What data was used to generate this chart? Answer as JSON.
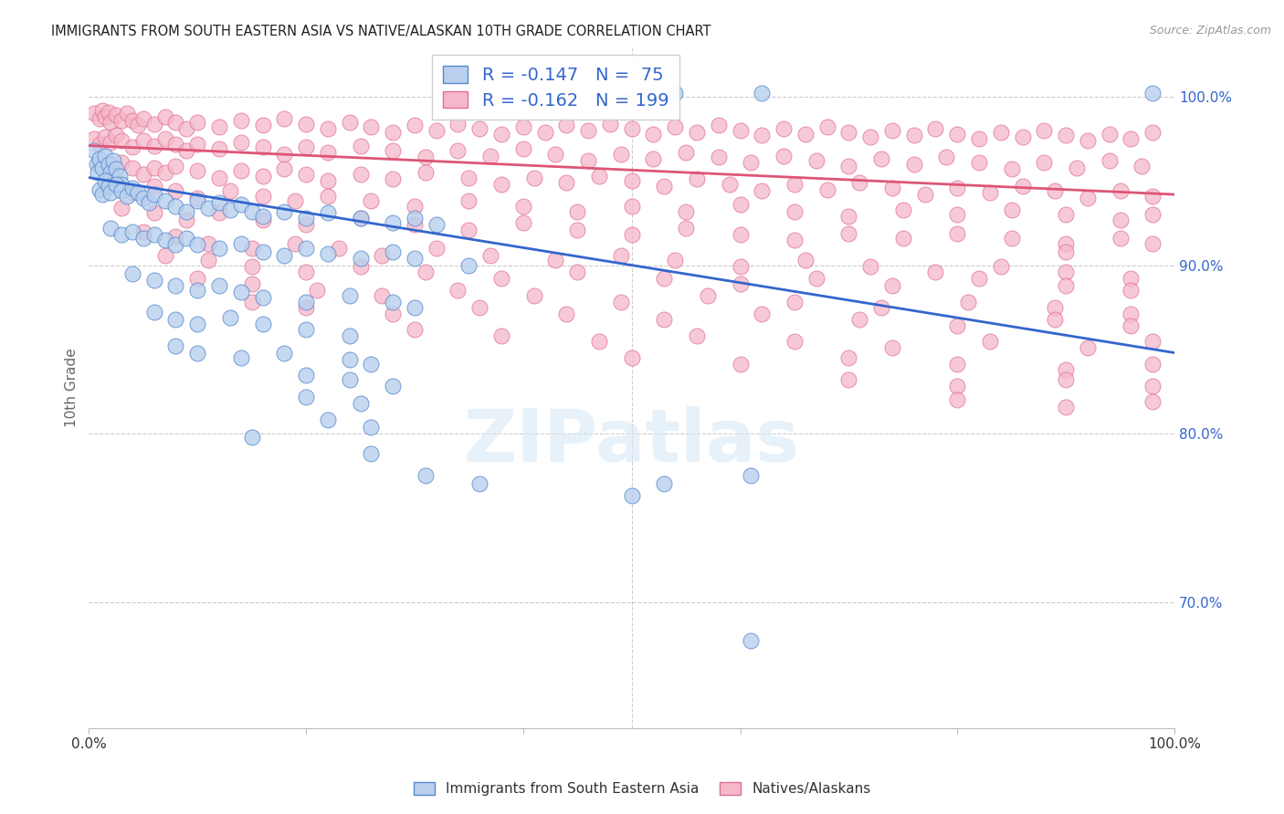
{
  "title": "IMMIGRANTS FROM SOUTH EASTERN ASIA VS NATIVE/ALASKAN 10TH GRADE CORRELATION CHART",
  "source": "Source: ZipAtlas.com",
  "ylabel": "10th Grade",
  "y_tick_labels": [
    "70.0%",
    "80.0%",
    "90.0%",
    "100.0%"
  ],
  "y_tick_values": [
    0.7,
    0.8,
    0.9,
    1.0
  ],
  "x_range": [
    0.0,
    1.0
  ],
  "y_range": [
    0.625,
    1.03
  ],
  "legend_blue_r": "-0.147",
  "legend_blue_n": "75",
  "legend_pink_r": "-0.162",
  "legend_pink_n": "199",
  "blue_color": "#b8d0ee",
  "pink_color": "#f5b8ca",
  "blue_edge_color": "#5588cc",
  "pink_edge_color": "#e07090",
  "blue_line_color": "#3366cc",
  "pink_line_color": "#dd5577",
  "blue_line": [
    [
      0.0,
      0.952
    ],
    [
      1.0,
      0.848
    ]
  ],
  "pink_line": [
    [
      0.0,
      0.971
    ],
    [
      1.0,
      0.942
    ]
  ],
  "blue_scatter": [
    [
      0.005,
      0.968
    ],
    [
      0.007,
      0.96
    ],
    [
      0.008,
      0.955
    ],
    [
      0.01,
      0.963
    ],
    [
      0.012,
      0.958
    ],
    [
      0.015,
      0.965
    ],
    [
      0.018,
      0.96
    ],
    [
      0.02,
      0.955
    ],
    [
      0.022,
      0.962
    ],
    [
      0.025,
      0.957
    ],
    [
      0.028,
      0.953
    ],
    [
      0.03,
      0.948
    ],
    [
      0.01,
      0.945
    ],
    [
      0.012,
      0.942
    ],
    [
      0.015,
      0.95
    ],
    [
      0.018,
      0.947
    ],
    [
      0.02,
      0.943
    ],
    [
      0.025,
      0.948
    ],
    [
      0.03,
      0.944
    ],
    [
      0.035,
      0.941
    ],
    [
      0.04,
      0.946
    ],
    [
      0.045,
      0.943
    ],
    [
      0.05,
      0.94
    ],
    [
      0.055,
      0.937
    ],
    [
      0.06,
      0.942
    ],
    [
      0.07,
      0.938
    ],
    [
      0.08,
      0.935
    ],
    [
      0.09,
      0.932
    ],
    [
      0.1,
      0.938
    ],
    [
      0.11,
      0.934
    ],
    [
      0.12,
      0.937
    ],
    [
      0.13,
      0.933
    ],
    [
      0.14,
      0.936
    ],
    [
      0.15,
      0.932
    ],
    [
      0.16,
      0.929
    ],
    [
      0.18,
      0.932
    ],
    [
      0.2,
      0.928
    ],
    [
      0.22,
      0.931
    ],
    [
      0.25,
      0.928
    ],
    [
      0.28,
      0.925
    ],
    [
      0.3,
      0.928
    ],
    [
      0.32,
      0.924
    ],
    [
      0.02,
      0.922
    ],
    [
      0.03,
      0.918
    ],
    [
      0.04,
      0.92
    ],
    [
      0.05,
      0.916
    ],
    [
      0.06,
      0.918
    ],
    [
      0.07,
      0.915
    ],
    [
      0.08,
      0.912
    ],
    [
      0.09,
      0.916
    ],
    [
      0.1,
      0.912
    ],
    [
      0.12,
      0.91
    ],
    [
      0.14,
      0.913
    ],
    [
      0.16,
      0.908
    ],
    [
      0.18,
      0.906
    ],
    [
      0.2,
      0.91
    ],
    [
      0.22,
      0.907
    ],
    [
      0.25,
      0.904
    ],
    [
      0.28,
      0.908
    ],
    [
      0.3,
      0.904
    ],
    [
      0.35,
      0.9
    ],
    [
      0.04,
      0.895
    ],
    [
      0.06,
      0.891
    ],
    [
      0.08,
      0.888
    ],
    [
      0.1,
      0.885
    ],
    [
      0.12,
      0.888
    ],
    [
      0.14,
      0.884
    ],
    [
      0.16,
      0.881
    ],
    [
      0.2,
      0.878
    ],
    [
      0.24,
      0.882
    ],
    [
      0.28,
      0.878
    ],
    [
      0.3,
      0.875
    ],
    [
      0.06,
      0.872
    ],
    [
      0.08,
      0.868
    ],
    [
      0.1,
      0.865
    ],
    [
      0.13,
      0.869
    ],
    [
      0.16,
      0.865
    ],
    [
      0.2,
      0.862
    ],
    [
      0.24,
      0.858
    ],
    [
      0.08,
      0.852
    ],
    [
      0.1,
      0.848
    ],
    [
      0.14,
      0.845
    ],
    [
      0.18,
      0.848
    ],
    [
      0.24,
      0.844
    ],
    [
      0.26,
      0.841
    ],
    [
      0.2,
      0.835
    ],
    [
      0.24,
      0.832
    ],
    [
      0.28,
      0.828
    ],
    [
      0.2,
      0.822
    ],
    [
      0.25,
      0.818
    ],
    [
      0.22,
      0.808
    ],
    [
      0.26,
      0.804
    ],
    [
      0.15,
      0.798
    ],
    [
      0.26,
      0.788
    ],
    [
      0.31,
      0.775
    ],
    [
      0.36,
      0.77
    ],
    [
      0.5,
      0.763
    ],
    [
      0.53,
      0.77
    ],
    [
      0.61,
      0.775
    ],
    [
      0.61,
      0.677
    ],
    [
      0.54,
      1.002
    ],
    [
      0.62,
      1.002
    ],
    [
      0.98,
      1.002
    ]
  ],
  "pink_scatter": [
    [
      0.005,
      0.99
    ],
    [
      0.01,
      0.987
    ],
    [
      0.012,
      0.992
    ],
    [
      0.015,
      0.988
    ],
    [
      0.018,
      0.991
    ],
    [
      0.02,
      0.985
    ],
    [
      0.025,
      0.989
    ],
    [
      0.03,
      0.986
    ],
    [
      0.035,
      0.99
    ],
    [
      0.04,
      0.986
    ],
    [
      0.045,
      0.983
    ],
    [
      0.05,
      0.987
    ],
    [
      0.06,
      0.984
    ],
    [
      0.07,
      0.988
    ],
    [
      0.08,
      0.985
    ],
    [
      0.09,
      0.981
    ],
    [
      0.1,
      0.985
    ],
    [
      0.12,
      0.982
    ],
    [
      0.14,
      0.986
    ],
    [
      0.16,
      0.983
    ],
    [
      0.18,
      0.987
    ],
    [
      0.2,
      0.984
    ],
    [
      0.22,
      0.981
    ],
    [
      0.24,
      0.985
    ],
    [
      0.26,
      0.982
    ],
    [
      0.28,
      0.979
    ],
    [
      0.3,
      0.983
    ],
    [
      0.32,
      0.98
    ],
    [
      0.34,
      0.984
    ],
    [
      0.36,
      0.981
    ],
    [
      0.38,
      0.978
    ],
    [
      0.4,
      0.982
    ],
    [
      0.42,
      0.979
    ],
    [
      0.44,
      0.983
    ],
    [
      0.46,
      0.98
    ],
    [
      0.48,
      0.984
    ],
    [
      0.5,
      0.981
    ],
    [
      0.52,
      0.978
    ],
    [
      0.54,
      0.982
    ],
    [
      0.56,
      0.979
    ],
    [
      0.58,
      0.983
    ],
    [
      0.6,
      0.98
    ],
    [
      0.62,
      0.977
    ],
    [
      0.64,
      0.981
    ],
    [
      0.66,
      0.978
    ],
    [
      0.68,
      0.982
    ],
    [
      0.7,
      0.979
    ],
    [
      0.72,
      0.976
    ],
    [
      0.74,
      0.98
    ],
    [
      0.76,
      0.977
    ],
    [
      0.78,
      0.981
    ],
    [
      0.8,
      0.978
    ],
    [
      0.82,
      0.975
    ],
    [
      0.84,
      0.979
    ],
    [
      0.86,
      0.976
    ],
    [
      0.88,
      0.98
    ],
    [
      0.9,
      0.977
    ],
    [
      0.92,
      0.974
    ],
    [
      0.94,
      0.978
    ],
    [
      0.96,
      0.975
    ],
    [
      0.98,
      0.979
    ],
    [
      0.005,
      0.975
    ],
    [
      0.01,
      0.972
    ],
    [
      0.015,
      0.976
    ],
    [
      0.02,
      0.973
    ],
    [
      0.025,
      0.977
    ],
    [
      0.03,
      0.974
    ],
    [
      0.04,
      0.97
    ],
    [
      0.05,
      0.974
    ],
    [
      0.06,
      0.971
    ],
    [
      0.07,
      0.975
    ],
    [
      0.08,
      0.972
    ],
    [
      0.09,
      0.968
    ],
    [
      0.1,
      0.972
    ],
    [
      0.12,
      0.969
    ],
    [
      0.14,
      0.973
    ],
    [
      0.16,
      0.97
    ],
    [
      0.18,
      0.966
    ],
    [
      0.2,
      0.97
    ],
    [
      0.22,
      0.967
    ],
    [
      0.25,
      0.971
    ],
    [
      0.28,
      0.968
    ],
    [
      0.31,
      0.964
    ],
    [
      0.34,
      0.968
    ],
    [
      0.37,
      0.965
    ],
    [
      0.4,
      0.969
    ],
    [
      0.43,
      0.966
    ],
    [
      0.46,
      0.962
    ],
    [
      0.49,
      0.966
    ],
    [
      0.52,
      0.963
    ],
    [
      0.55,
      0.967
    ],
    [
      0.58,
      0.964
    ],
    [
      0.61,
      0.961
    ],
    [
      0.64,
      0.965
    ],
    [
      0.67,
      0.962
    ],
    [
      0.7,
      0.959
    ],
    [
      0.73,
      0.963
    ],
    [
      0.76,
      0.96
    ],
    [
      0.79,
      0.964
    ],
    [
      0.82,
      0.961
    ],
    [
      0.85,
      0.957
    ],
    [
      0.88,
      0.961
    ],
    [
      0.91,
      0.958
    ],
    [
      0.94,
      0.962
    ],
    [
      0.97,
      0.959
    ],
    [
      0.01,
      0.96
    ],
    [
      0.02,
      0.957
    ],
    [
      0.03,
      0.961
    ],
    [
      0.04,
      0.958
    ],
    [
      0.05,
      0.954
    ],
    [
      0.06,
      0.958
    ],
    [
      0.07,
      0.955
    ],
    [
      0.08,
      0.959
    ],
    [
      0.1,
      0.956
    ],
    [
      0.12,
      0.952
    ],
    [
      0.14,
      0.956
    ],
    [
      0.16,
      0.953
    ],
    [
      0.18,
      0.957
    ],
    [
      0.2,
      0.954
    ],
    [
      0.22,
      0.95
    ],
    [
      0.25,
      0.954
    ],
    [
      0.28,
      0.951
    ],
    [
      0.31,
      0.955
    ],
    [
      0.35,
      0.952
    ],
    [
      0.38,
      0.948
    ],
    [
      0.41,
      0.952
    ],
    [
      0.44,
      0.949
    ],
    [
      0.47,
      0.953
    ],
    [
      0.5,
      0.95
    ],
    [
      0.53,
      0.947
    ],
    [
      0.56,
      0.951
    ],
    [
      0.59,
      0.948
    ],
    [
      0.62,
      0.944
    ],
    [
      0.65,
      0.948
    ],
    [
      0.68,
      0.945
    ],
    [
      0.71,
      0.949
    ],
    [
      0.74,
      0.946
    ],
    [
      0.77,
      0.942
    ],
    [
      0.8,
      0.946
    ],
    [
      0.83,
      0.943
    ],
    [
      0.86,
      0.947
    ],
    [
      0.89,
      0.944
    ],
    [
      0.92,
      0.94
    ],
    [
      0.95,
      0.944
    ],
    [
      0.98,
      0.941
    ],
    [
      0.02,
      0.947
    ],
    [
      0.04,
      0.943
    ],
    [
      0.06,
      0.947
    ],
    [
      0.08,
      0.944
    ],
    [
      0.1,
      0.94
    ],
    [
      0.13,
      0.944
    ],
    [
      0.16,
      0.941
    ],
    [
      0.19,
      0.938
    ],
    [
      0.22,
      0.941
    ],
    [
      0.26,
      0.938
    ],
    [
      0.3,
      0.935
    ],
    [
      0.35,
      0.938
    ],
    [
      0.4,
      0.935
    ],
    [
      0.45,
      0.932
    ],
    [
      0.5,
      0.935
    ],
    [
      0.55,
      0.932
    ],
    [
      0.6,
      0.936
    ],
    [
      0.65,
      0.932
    ],
    [
      0.7,
      0.929
    ],
    [
      0.75,
      0.933
    ],
    [
      0.8,
      0.93
    ],
    [
      0.85,
      0.933
    ],
    [
      0.9,
      0.93
    ],
    [
      0.95,
      0.927
    ],
    [
      0.98,
      0.93
    ],
    [
      0.03,
      0.934
    ],
    [
      0.06,
      0.931
    ],
    [
      0.09,
      0.927
    ],
    [
      0.12,
      0.931
    ],
    [
      0.16,
      0.927
    ],
    [
      0.2,
      0.924
    ],
    [
      0.25,
      0.928
    ],
    [
      0.3,
      0.924
    ],
    [
      0.35,
      0.921
    ],
    [
      0.4,
      0.925
    ],
    [
      0.45,
      0.921
    ],
    [
      0.5,
      0.918
    ],
    [
      0.55,
      0.922
    ],
    [
      0.6,
      0.918
    ],
    [
      0.65,
      0.915
    ],
    [
      0.7,
      0.919
    ],
    [
      0.75,
      0.916
    ],
    [
      0.8,
      0.919
    ],
    [
      0.85,
      0.916
    ],
    [
      0.9,
      0.913
    ],
    [
      0.95,
      0.916
    ],
    [
      0.98,
      0.913
    ],
    [
      0.05,
      0.92
    ],
    [
      0.08,
      0.917
    ],
    [
      0.11,
      0.913
    ],
    [
      0.15,
      0.91
    ],
    [
      0.19,
      0.913
    ],
    [
      0.23,
      0.91
    ],
    [
      0.27,
      0.906
    ],
    [
      0.32,
      0.91
    ],
    [
      0.37,
      0.906
    ],
    [
      0.43,
      0.903
    ],
    [
      0.49,
      0.906
    ],
    [
      0.54,
      0.903
    ],
    [
      0.6,
      0.899
    ],
    [
      0.66,
      0.903
    ],
    [
      0.72,
      0.899
    ],
    [
      0.78,
      0.896
    ],
    [
      0.84,
      0.899
    ],
    [
      0.9,
      0.896
    ],
    [
      0.96,
      0.892
    ],
    [
      0.07,
      0.906
    ],
    [
      0.11,
      0.903
    ],
    [
      0.15,
      0.899
    ],
    [
      0.2,
      0.896
    ],
    [
      0.25,
      0.899
    ],
    [
      0.31,
      0.896
    ],
    [
      0.38,
      0.892
    ],
    [
      0.45,
      0.896
    ],
    [
      0.53,
      0.892
    ],
    [
      0.6,
      0.889
    ],
    [
      0.67,
      0.892
    ],
    [
      0.74,
      0.888
    ],
    [
      0.82,
      0.892
    ],
    [
      0.9,
      0.888
    ],
    [
      0.96,
      0.885
    ],
    [
      0.1,
      0.892
    ],
    [
      0.15,
      0.889
    ],
    [
      0.21,
      0.885
    ],
    [
      0.27,
      0.882
    ],
    [
      0.34,
      0.885
    ],
    [
      0.41,
      0.882
    ],
    [
      0.49,
      0.878
    ],
    [
      0.57,
      0.882
    ],
    [
      0.65,
      0.878
    ],
    [
      0.73,
      0.875
    ],
    [
      0.81,
      0.878
    ],
    [
      0.89,
      0.875
    ],
    [
      0.96,
      0.871
    ],
    [
      0.15,
      0.878
    ],
    [
      0.2,
      0.875
    ],
    [
      0.28,
      0.871
    ],
    [
      0.36,
      0.875
    ],
    [
      0.44,
      0.871
    ],
    [
      0.53,
      0.868
    ],
    [
      0.62,
      0.871
    ],
    [
      0.71,
      0.868
    ],
    [
      0.8,
      0.864
    ],
    [
      0.89,
      0.868
    ],
    [
      0.96,
      0.864
    ],
    [
      0.3,
      0.862
    ],
    [
      0.38,
      0.858
    ],
    [
      0.47,
      0.855
    ],
    [
      0.56,
      0.858
    ],
    [
      0.65,
      0.855
    ],
    [
      0.74,
      0.851
    ],
    [
      0.83,
      0.855
    ],
    [
      0.92,
      0.851
    ],
    [
      0.98,
      0.855
    ],
    [
      0.5,
      0.845
    ],
    [
      0.6,
      0.841
    ],
    [
      0.7,
      0.845
    ],
    [
      0.8,
      0.841
    ],
    [
      0.9,
      0.838
    ],
    [
      0.98,
      0.841
    ],
    [
      0.7,
      0.832
    ],
    [
      0.8,
      0.828
    ],
    [
      0.9,
      0.832
    ],
    [
      0.98,
      0.828
    ],
    [
      0.8,
      0.82
    ],
    [
      0.9,
      0.816
    ],
    [
      0.98,
      0.819
    ],
    [
      0.9,
      0.908
    ]
  ],
  "watermark_text": "ZIPatlas",
  "legend_labels": [
    "Immigrants from South Eastern Asia",
    "Natives/Alaskans"
  ]
}
